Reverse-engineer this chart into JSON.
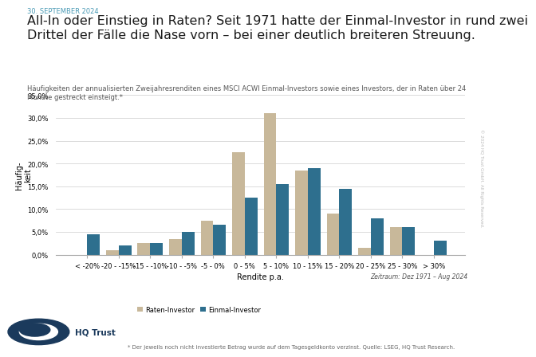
{
  "date_label": "30. SEPTEMBER 2024",
  "title": "All-In oder Einstieg in Raten? Seit 1971 hatte der Einmal-Investor in rund zwei\nDrittel der Fälle die Nase vorn – bei einer deutlich breiteren Streuung.",
  "subtitle": "Häufigkeiten der annualisierten Zweijahresrenditen eines MSCI ACWI Einmal-Investors sowie eines Investors, der in Raten über 24\nMonate gestreckt einsteigt.*",
  "xlabel": "Rendite p.a.",
  "ylabel": "Häufig-\nkeit",
  "categories": [
    "< -20%",
    "-20 - -15%",
    "-15 - -10%",
    "-10 - -5%",
    "-5 - 0%",
    "0 - 5%",
    "5 - 10%",
    "10 - 15%",
    "15 - 20%",
    "20 - 25%",
    "25 - 30%",
    "> 30%"
  ],
  "raten_values": [
    0.0,
    1.0,
    2.5,
    3.5,
    7.5,
    22.5,
    31.0,
    18.5,
    9.0,
    1.5,
    6.0,
    0.0
  ],
  "einmal_values": [
    4.5,
    2.0,
    2.5,
    5.0,
    6.5,
    12.5,
    15.5,
    19.0,
    14.5,
    8.0,
    6.0,
    3.0
  ],
  "raten_color": "#c8b89a",
  "einmal_color": "#2e6f8e",
  "ylim": [
    0,
    35
  ],
  "yticks": [
    0,
    5,
    10,
    15,
    20,
    25,
    30,
    35
  ],
  "legend_raten": "Raten-Investor",
  "legend_einmal": "Einmal-Investor",
  "zeitraum": "Zeitraum: Dez 1971 – Aug 2024",
  "footnote": "* Der jeweils noch nicht investierte Betrag wurde auf dem Tagesgeldkonto verzinst. Quelle: LSEG, HQ Trust Research.",
  "watermark": "© 2024 HQ Trust GmbH. All Rights Reserved.",
  "bg_color": "#ffffff",
  "grid_color": "#cccccc",
  "date_color": "#4a9ab5",
  "title_fontsize": 11.5,
  "subtitle_fontsize": 6.0,
  "axis_fontsize": 7.0,
  "tick_fontsize": 6.0,
  "legend_fontsize": 6.0,
  "footnote_fontsize": 5.0,
  "zeitraum_fontsize": 5.5
}
